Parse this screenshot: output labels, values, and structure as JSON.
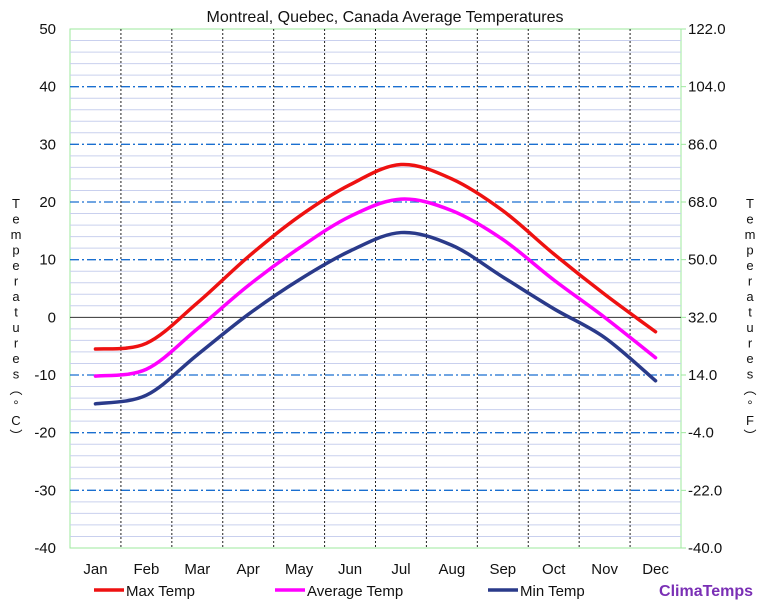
{
  "chart_data": {
    "type": "line",
    "title": "Montreal, Quebec, Canada Average Temperatures",
    "categories": [
      "Jan",
      "Feb",
      "Mar",
      "Apr",
      "May",
      "Jun",
      "Jul",
      "Aug",
      "Sep",
      "Oct",
      "Nov",
      "Dec"
    ],
    "ylabel_left": "Temperatures (°C)",
    "ylabel_right": "Temperatures (°F)",
    "ylim": [
      -40,
      50
    ],
    "y2lim": [
      -40.0,
      122.0
    ],
    "yticks": [
      "50",
      "40",
      "30",
      "20",
      "10",
      "0",
      "-10",
      "-20",
      "-30",
      "-40"
    ],
    "y2ticks": [
      "122.0",
      "104.0",
      "86.0",
      "68.0",
      "50.0",
      "32.0",
      "14.0",
      "-4.0",
      "-22.0",
      "-40.0"
    ],
    "grid": true,
    "legend_position": "bottom",
    "series": [
      {
        "name": "Max Temp",
        "color": "#ee1111",
        "values": [
          -5.5,
          -4.5,
          2.5,
          10.5,
          17.5,
          23.0,
          26.5,
          24.0,
          18.5,
          11.0,
          4.0,
          -2.5
        ]
      },
      {
        "name": "Average Temp",
        "color": "#ff00ff",
        "values": [
          -10.2,
          -9.0,
          -2.0,
          5.5,
          12.0,
          17.5,
          20.5,
          18.5,
          13.5,
          6.5,
          0.0,
          -7.0
        ]
      },
      {
        "name": "Min Temp",
        "color": "#2a3a8a",
        "values": [
          -15.0,
          -13.5,
          -6.5,
          0.5,
          6.5,
          11.5,
          14.7,
          12.5,
          7.0,
          1.5,
          -3.5,
          -11.0
        ]
      }
    ],
    "brand": "ClimaTemps"
  }
}
